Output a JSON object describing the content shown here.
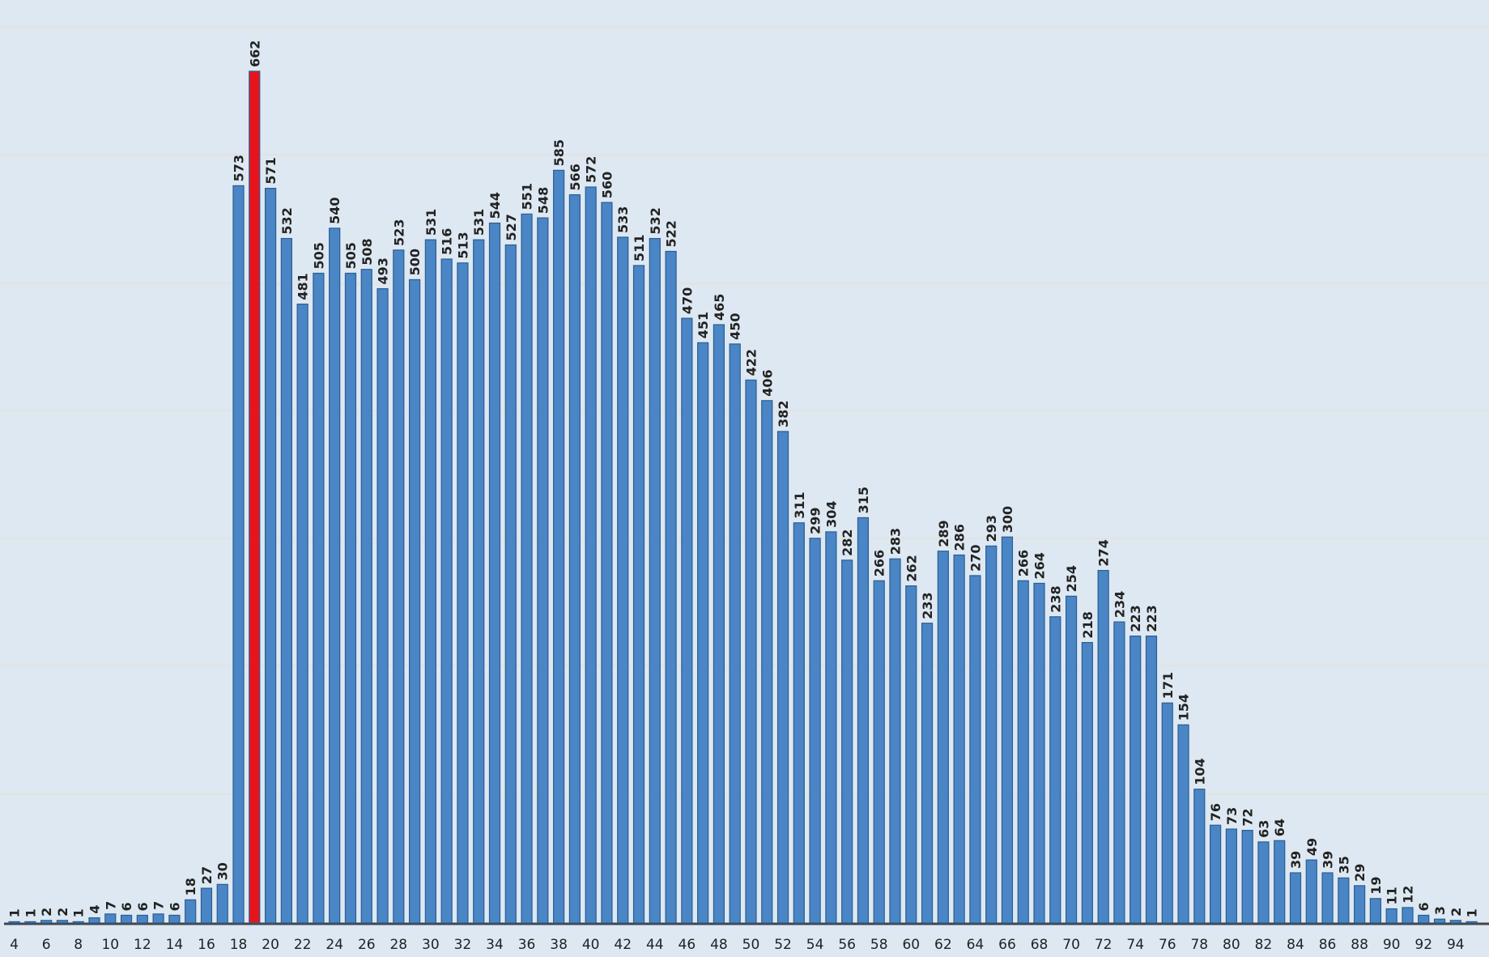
{
  "chart_data": {
    "type": "bar",
    "categories": [
      "4",
      null,
      "6",
      null,
      "8",
      null,
      "10",
      null,
      "12",
      null,
      "14",
      null,
      "16",
      null,
      "18",
      null,
      "20",
      null,
      "22",
      null,
      "24",
      null,
      "26",
      null,
      "28",
      null,
      "30",
      null,
      "32",
      null,
      "34",
      null,
      "36",
      null,
      "38",
      null,
      "40",
      null,
      "42",
      null,
      "44",
      null,
      "46",
      null,
      "48",
      null,
      "50",
      null,
      "52",
      null,
      "54",
      null,
      "56",
      null,
      "58",
      null,
      "60",
      null,
      "62",
      null,
      "64",
      null,
      "66",
      null,
      "68",
      null,
      "70",
      null,
      "72",
      null,
      "74",
      null,
      "76",
      null,
      "78",
      null,
      "80",
      null,
      "82",
      null,
      "84",
      null,
      "86",
      null,
      "88",
      null,
      "90",
      null,
      "92",
      null,
      "94",
      null
    ],
    "values": [
      1,
      1,
      2,
      2,
      1,
      4,
      7,
      6,
      6,
      7,
      6,
      18,
      27,
      30,
      573,
      662,
      571,
      532,
      481,
      505,
      540,
      505,
      508,
      493,
      523,
      500,
      531,
      516,
      513,
      531,
      544,
      527,
      551,
      548,
      585,
      566,
      572,
      560,
      533,
      511,
      532,
      522,
      470,
      451,
      465,
      450,
      422,
      406,
      382,
      311,
      299,
      304,
      282,
      315,
      266,
      283,
      262,
      233,
      289,
      286,
      270,
      293,
      300,
      266,
      264,
      238,
      254,
      218,
      274,
      234,
      223,
      223,
      171,
      154,
      104,
      76,
      73,
      72,
      63,
      64,
      39,
      49,
      39,
      35,
      29,
      19,
      11,
      12,
      6,
      3,
      2,
      1
    ],
    "colors": [
      "#4a86c5",
      "#4a86c5",
      "#4a86c5",
      "#4a86c5",
      "#4a86c5",
      "#4a86c5",
      "#4a86c5",
      "#4a86c5",
      "#4a86c5",
      "#4a86c5",
      "#4a86c5",
      "#4a86c5",
      "#4a86c5",
      "#4a86c5",
      "#4a86c5",
      "#e8141c",
      "#4a86c5",
      "#4a86c5",
      "#4a86c5",
      "#4a86c5",
      "#4a86c5",
      "#4a86c5",
      "#4a86c5",
      "#4a86c5",
      "#4a86c5",
      "#4a86c5",
      "#4a86c5",
      "#4a86c5",
      "#4a86c5",
      "#4a86c5",
      "#4a86c5",
      "#4a86c5",
      "#4a86c5",
      "#4a86c5",
      "#4a86c5",
      "#4a86c5",
      "#4a86c5",
      "#4a86c5",
      "#4a86c5",
      "#4a86c5",
      "#4a86c5",
      "#4a86c5",
      "#4a86c5",
      "#4a86c5",
      "#4a86c5",
      "#4a86c5",
      "#4a86c5",
      "#4a86c5",
      "#4a86c5",
      "#4a86c5",
      "#4a86c5",
      "#4a86c5",
      "#4a86c5",
      "#4a86c5",
      "#4a86c5",
      "#4a86c5",
      "#4a86c5",
      "#4a86c5",
      "#4a86c5",
      "#4a86c5",
      "#4a86c5",
      "#4a86c5",
      "#4a86c5",
      "#4a86c5",
      "#4a86c5",
      "#4a86c5",
      "#4a86c5",
      "#4a86c5",
      "#4a86c5",
      "#4a86c5",
      "#4a86c5",
      "#4a86c5",
      "#4a86c5",
      "#4a86c5",
      "#4a86c5",
      "#4a86c5",
      "#4a86c5",
      "#4a86c5",
      "#4a86c5",
      "#4a86c5",
      "#4a86c5",
      "#4a86c5",
      "#4a86c5",
      "#4a86c5",
      "#4a86c5",
      "#4a86c5",
      "#4a86c5",
      "#4a86c5",
      "#4a86c5",
      "#4a86c5",
      "#4a86c5",
      "#4a86c5"
    ],
    "ylim": [
      0,
      700
    ]
  }
}
